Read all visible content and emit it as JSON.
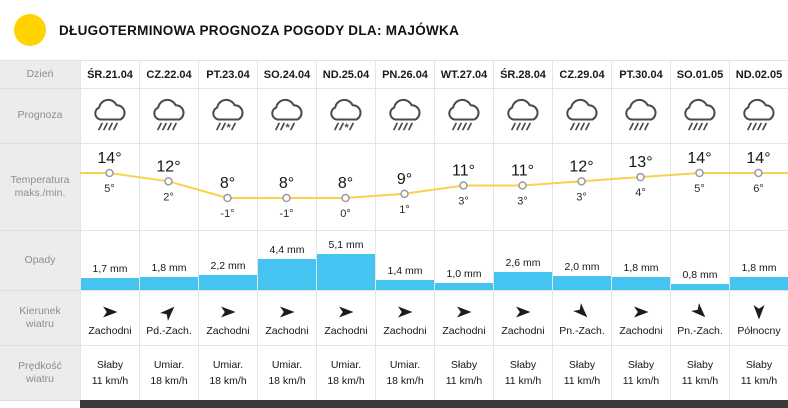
{
  "header": {
    "title": "DŁUGOTERMINOWA PROGNOZA POGODY DLA: MAJÓWKA"
  },
  "row_labels": {
    "day": "Dzień",
    "forecast": "Prognoza",
    "temperature": "Temperatura maks./min.",
    "precip": "Opady",
    "wind_dir": "Kierunek wiatru",
    "wind_speed": "Prędkość wiatru"
  },
  "colors": {
    "logo_yellow": "#ffd200",
    "temp_line": "#fbd14b",
    "precip_bar": "#45c3f1",
    "bottom_bar": "#3a3a3a"
  },
  "days": [
    {
      "label": "ŚR.21.04",
      "icon": "rain-cloud-icon",
      "temp_max": "14°",
      "temp_min": "5°",
      "precip": "1,7 mm",
      "wind_dir": "Zachodni",
      "wind_deg": 0,
      "wind_strength": "Słaby",
      "wind_speed": "11 km/h"
    },
    {
      "label": "CZ.22.04",
      "icon": "rain-cloud-icon",
      "temp_max": "12°",
      "temp_min": "2°",
      "precip": "1,8 mm",
      "wind_dir": "Pd.-Zach.",
      "wind_deg": -45,
      "wind_strength": "Umiar.",
      "wind_speed": "18 km/h"
    },
    {
      "label": "PT.23.04",
      "icon": "sleet-cloud-icon",
      "temp_max": "8°",
      "temp_min": "-1°",
      "precip": "2,2 mm",
      "wind_dir": "Zachodni",
      "wind_deg": 0,
      "wind_strength": "Umiar.",
      "wind_speed": "18 km/h"
    },
    {
      "label": "SO.24.04",
      "icon": "sleet-cloud-icon",
      "temp_max": "8°",
      "temp_min": "-1°",
      "precip": "4,4 mm",
      "wind_dir": "Zachodni",
      "wind_deg": 0,
      "wind_strength": "Umiar.",
      "wind_speed": "18 km/h"
    },
    {
      "label": "ND.25.04",
      "icon": "sleet-cloud-icon",
      "temp_max": "8°",
      "temp_min": "0°",
      "precip": "5,1 mm",
      "wind_dir": "Zachodni",
      "wind_deg": 0,
      "wind_strength": "Umiar.",
      "wind_speed": "18 km/h"
    },
    {
      "label": "PN.26.04",
      "icon": "rain-cloud-icon",
      "temp_max": "9°",
      "temp_min": "1°",
      "precip": "1,4 mm",
      "wind_dir": "Zachodni",
      "wind_deg": 0,
      "wind_strength": "Umiar.",
      "wind_speed": "18 km/h"
    },
    {
      "label": "WT.27.04",
      "icon": "rain-cloud-icon",
      "temp_max": "11°",
      "temp_min": "3°",
      "precip": "1,0 mm",
      "wind_dir": "Zachodni",
      "wind_deg": 0,
      "wind_strength": "Słaby",
      "wind_speed": "11 km/h"
    },
    {
      "label": "ŚR.28.04",
      "icon": "rain-cloud-icon",
      "temp_max": "11°",
      "temp_min": "3°",
      "precip": "2,6 mm",
      "wind_dir": "Zachodni",
      "wind_deg": 0,
      "wind_strength": "Słaby",
      "wind_speed": "11 km/h"
    },
    {
      "label": "CZ.29.04",
      "icon": "rain-cloud-icon",
      "temp_max": "12°",
      "temp_min": "3°",
      "precip": "2,0 mm",
      "wind_dir": "Pn.-Zach.",
      "wind_deg": 45,
      "wind_strength": "Słaby",
      "wind_speed": "11 km/h"
    },
    {
      "label": "PT.30.04",
      "icon": "rain-cloud-icon",
      "temp_max": "13°",
      "temp_min": "4°",
      "precip": "1,8 mm",
      "wind_dir": "Zachodni",
      "wind_deg": 0,
      "wind_strength": "Słaby",
      "wind_speed": "11 km/h"
    },
    {
      "label": "SO.01.05",
      "icon": "rain-cloud-icon",
      "temp_max": "14°",
      "temp_min": "5°",
      "precip": "0,8 mm",
      "wind_dir": "Pn.-Zach.",
      "wind_deg": 45,
      "wind_strength": "Słaby",
      "wind_speed": "11 km/h"
    },
    {
      "label": "ND.02.05",
      "icon": "rain-cloud-icon",
      "temp_max": "14°",
      "temp_min": "6°",
      "precip": "1,8 mm",
      "wind_dir": "Północny",
      "wind_deg": 90,
      "wind_strength": "Słaby",
      "wind_speed": "11 km/h"
    }
  ],
  "chart_data": [
    {
      "type": "line",
      "title": "Temperatura maks./min.",
      "unit": "°C",
      "categories": [
        "ŚR.21.04",
        "CZ.22.04",
        "PT.23.04",
        "SO.24.04",
        "ND.25.04",
        "PN.26.04",
        "WT.27.04",
        "ŚR.28.04",
        "CZ.29.04",
        "PT.30.04",
        "SO.01.05",
        "ND.02.05"
      ],
      "series": [
        {
          "name": "maks",
          "values": [
            14,
            12,
            8,
            8,
            8,
            9,
            11,
            11,
            12,
            13,
            14,
            14
          ]
        },
        {
          "name": "min",
          "values": [
            5,
            2,
            -1,
            -1,
            0,
            1,
            3,
            3,
            3,
            4,
            5,
            6
          ]
        }
      ],
      "ylim": [
        -2,
        16
      ],
      "grid": false,
      "legend": "none"
    },
    {
      "type": "bar",
      "title": "Opady",
      "unit": "mm",
      "categories": [
        "ŚR.21.04",
        "CZ.22.04",
        "PT.23.04",
        "SO.24.04",
        "ND.25.04",
        "PN.26.04",
        "WT.27.04",
        "ŚR.28.04",
        "CZ.29.04",
        "PT.30.04",
        "SO.01.05",
        "ND.02.05"
      ],
      "values": [
        1.7,
        1.8,
        2.2,
        4.4,
        5.1,
        1.4,
        1.0,
        2.6,
        2.0,
        1.8,
        0.8,
        1.8
      ],
      "ylim": [
        0,
        6
      ],
      "grid": false,
      "legend": "none"
    }
  ]
}
